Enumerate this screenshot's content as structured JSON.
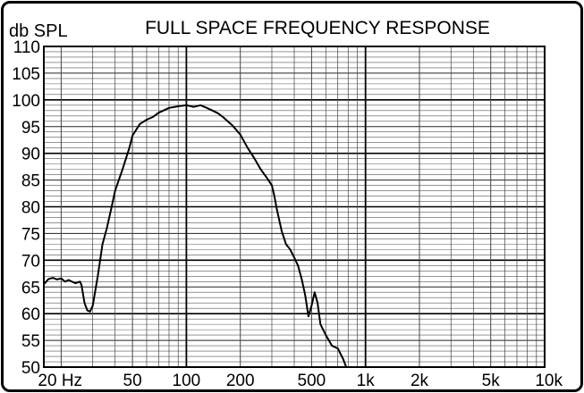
{
  "chart_data": {
    "type": "line",
    "title": "FULL SPACE FREQUENCY RESPONSE",
    "ylabel": "db SPL",
    "xlabel": "",
    "x_scale": "log",
    "xlim": [
      16,
      10000
    ],
    "ylim": [
      50,
      110
    ],
    "grid": true,
    "legend": "none",
    "x_ticks": [
      {
        "value": 20,
        "label": "20 Hz"
      },
      {
        "value": 50,
        "label": "50"
      },
      {
        "value": 100,
        "label": "100"
      },
      {
        "value": 200,
        "label": "200"
      },
      {
        "value": 500,
        "label": "500"
      },
      {
        "value": 1000,
        "label": "1k"
      },
      {
        "value": 2000,
        "label": "2k"
      },
      {
        "value": 5000,
        "label": "5k"
      },
      {
        "value": 10000,
        "label": "10k"
      }
    ],
    "y_ticks": [
      {
        "value": 110,
        "label": "110"
      },
      {
        "value": 105,
        "label": "105"
      },
      {
        "value": 100,
        "label": "100"
      },
      {
        "value": 95,
        "label": "95"
      },
      {
        "value": 90,
        "label": "90"
      },
      {
        "value": 85,
        "label": "85"
      },
      {
        "value": 80,
        "label": "80"
      },
      {
        "value": 75,
        "label": "75"
      },
      {
        "value": 70,
        "label": "70"
      },
      {
        "value": 65,
        "label": "65"
      },
      {
        "value": 60,
        "label": "60"
      },
      {
        "value": 55,
        "label": "55"
      },
      {
        "value": 50,
        "label": "50"
      }
    ],
    "series": [
      {
        "color": "#000000",
        "x": [
          16,
          17,
          18,
          19,
          20,
          21,
          22,
          24,
          25.5,
          26,
          27,
          28,
          29,
          30,
          32,
          34,
          36,
          38,
          40,
          44,
          48,
          50,
          55,
          60,
          65,
          70,
          80,
          90,
          100,
          110,
          120,
          130,
          140,
          150,
          160,
          170,
          180,
          200,
          220,
          240,
          260,
          280,
          300,
          310,
          320,
          340,
          360,
          380,
          400,
          420,
          440,
          460,
          480,
          500,
          520,
          540,
          560,
          600,
          650,
          700,
          750,
          780
        ],
        "y": [
          65.5,
          66.5,
          66.7,
          66.4,
          66.6,
          66.0,
          66.3,
          65.7,
          66.0,
          65.3,
          62.0,
          60.6,
          60.4,
          61.5,
          67.0,
          73.0,
          76.0,
          79.5,
          83.0,
          87.0,
          91.0,
          93.3,
          95.5,
          96.3,
          96.8,
          97.6,
          98.5,
          98.8,
          99.0,
          98.7,
          99.0,
          98.5,
          98.0,
          97.5,
          96.8,
          96.0,
          95.3,
          93.5,
          91.0,
          89.0,
          87.0,
          85.5,
          84.0,
          82.0,
          79.5,
          75.5,
          73.0,
          72.0,
          70.5,
          69.0,
          66.5,
          63.5,
          59.5,
          61.5,
          64.0,
          62.0,
          58.0,
          56.0,
          54.0,
          53.5,
          51.5,
          50.0
        ]
      }
    ]
  }
}
